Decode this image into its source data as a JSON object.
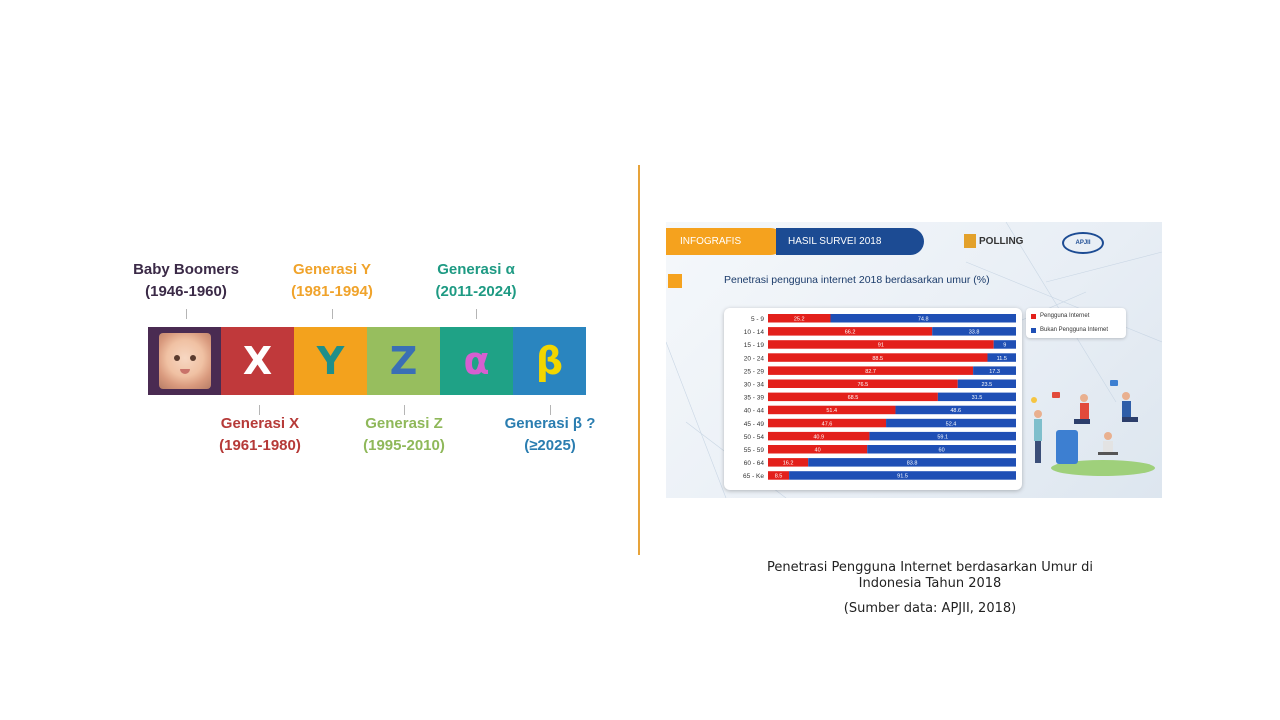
{
  "generations": {
    "top": [
      {
        "name": "Baby Boomers",
        "years": "(1946-1960)",
        "color": "#3b2a47"
      },
      {
        "name": "Generasi Y",
        "years": "(1981-1994)",
        "color": "#f0a32b"
      },
      {
        "name": "Generasi α",
        "years": "(2011-2024)",
        "color": "#1e9a83"
      }
    ],
    "bottom": [
      {
        "name": "Generasi X",
        "years": "(1961-1980)",
        "color": "#b63a38"
      },
      {
        "name": "Generasi Z",
        "years": "(1995-2010)",
        "color": "#8fb85a"
      },
      {
        "name": "Generasi β ?",
        "years": "(≥2025)",
        "color": "#2a7db0"
      }
    ],
    "segments": [
      {
        "letter": "X",
        "color": "#c0393b",
        "text_color": "#ffffff"
      },
      {
        "letter": "Y",
        "color": "#f3a21d",
        "text_color": "#1e8f8a"
      },
      {
        "letter": "Z",
        "color": "#97be5e",
        "text_color": "#3a6fb5"
      },
      {
        "letter": "α",
        "color": "#1fa286",
        "text_color": "#d65fd0"
      },
      {
        "letter": "β",
        "color": "#2a85bf",
        "text_color": "#f2d600"
      }
    ]
  },
  "infographic": {
    "tab_left": "INFOGRAFIS",
    "tab_right": "HASIL SURVEI 2018",
    "logo_polling": "POLLING",
    "logo_apjii": "APJII",
    "chart_title": "Penetrasi pengguna internet 2018 berdasarkan umur (%)",
    "legend": [
      {
        "label": "Pengguna Internet",
        "color": "#e3201b"
      },
      {
        "label": "Bukan Pengguna Internet",
        "color": "#1f4fb5"
      }
    ]
  },
  "chart_data": {
    "type": "bar",
    "orientation": "horizontal",
    "stacked": true,
    "categories": [
      "5 - 9",
      "10 - 14",
      "15 - 19",
      "20 - 24",
      "25 - 29",
      "30 - 34",
      "35 - 39",
      "40 - 44",
      "45 - 49",
      "50 - 54",
      "55 - 59",
      "60 - 64",
      "65 - Ke"
    ],
    "series": [
      {
        "name": "Pengguna Internet",
        "color": "#e3201b",
        "values": [
          25.2,
          66.2,
          91,
          88.5,
          82.7,
          76.5,
          68.5,
          51.4,
          47.6,
          40.9,
          40,
          16.2,
          8.5
        ]
      },
      {
        "name": "Bukan Pengguna Internet",
        "color": "#1f4fb5",
        "values": [
          74.8,
          33.8,
          9,
          11.5,
          17.3,
          23.5,
          31.5,
          48.6,
          52.4,
          59.1,
          60,
          83.8,
          91.5
        ]
      }
    ],
    "title": "Penetrasi pengguna internet 2018 berdasarkan umur (%)",
    "xlim": [
      0,
      100
    ],
    "legend_position": "top-right"
  },
  "caption": {
    "line1": "Penetrasi Pengguna Internet berdasarkan Umur di",
    "line2": "Indonesia Tahun 2018",
    "source": "(Sumber data: APJII, 2018)"
  }
}
